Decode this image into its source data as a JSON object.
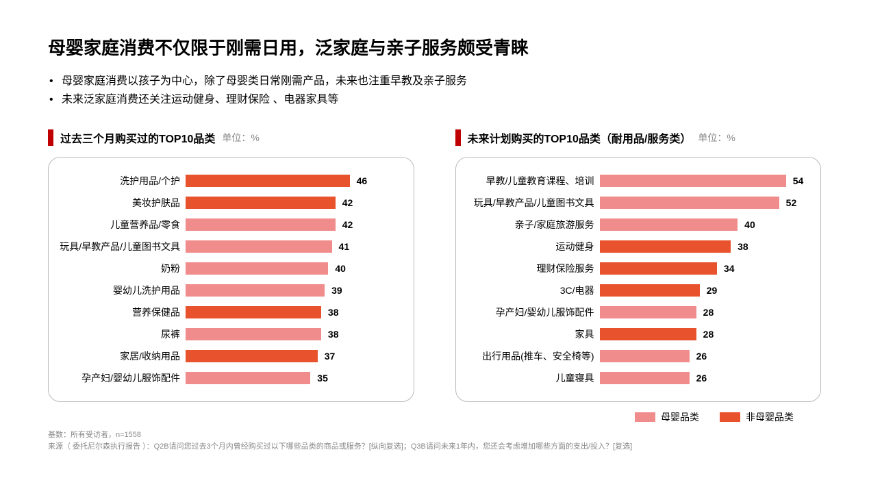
{
  "title": "母婴家庭消费不仅限于刚需日用，泛家庭与亲子服务颇受青睐",
  "bullets": [
    "母婴家庭消费以孩子为中心，除了母婴类日常刚需产品，未来也注重早教及亲子服务",
    "未来泛家庭消费还关注运动健身、理财保险 、电器家具等"
  ],
  "colors": {
    "maternal": "#f08c8c",
    "nonmaternal": "#e8522c",
    "accent": "#c00000",
    "border": "#bbbbbb",
    "text_muted": "#888888"
  },
  "legend": {
    "maternal_label": "母婴品类",
    "nonmaternal_label": "非母婴品类"
  },
  "chart_left": {
    "title": "过去三个月购买过的TOP10品类",
    "unit": "单位：%",
    "label_width": 190,
    "max_value": 60,
    "items": [
      {
        "label": "洗护用品/个护",
        "value": 46,
        "cat": "nonmaternal"
      },
      {
        "label": "美妆护肤品",
        "value": 42,
        "cat": "nonmaternal"
      },
      {
        "label": "儿童营养品/零食",
        "value": 42,
        "cat": "maternal"
      },
      {
        "label": "玩具/早教产品/儿童图书文具",
        "value": 41,
        "cat": "maternal"
      },
      {
        "label": "奶粉",
        "value": 40,
        "cat": "maternal"
      },
      {
        "label": "婴幼儿洗护用品",
        "value": 39,
        "cat": "maternal"
      },
      {
        "label": "营养保健品",
        "value": 38,
        "cat": "nonmaternal"
      },
      {
        "label": "尿裤",
        "value": 38,
        "cat": "maternal"
      },
      {
        "label": "家居/收纳用品",
        "value": 37,
        "cat": "nonmaternal"
      },
      {
        "label": "孕产妇/婴幼儿服饰配件",
        "value": 35,
        "cat": "maternal"
      }
    ]
  },
  "chart_right": {
    "title": "未来计划购买的TOP10品类（耐用品/服务类）",
    "unit": "单位：%",
    "label_width": 200,
    "max_value": 60,
    "items": [
      {
        "label": "早教/儿童教育课程、培训",
        "value": 54,
        "cat": "maternal"
      },
      {
        "label": "玩具/早教产品/儿童图书文具",
        "value": 52,
        "cat": "maternal"
      },
      {
        "label": "亲子/家庭旅游服务",
        "value": 40,
        "cat": "maternal"
      },
      {
        "label": "运动健身",
        "value": 38,
        "cat": "nonmaternal"
      },
      {
        "label": "理财保险服务",
        "value": 34,
        "cat": "nonmaternal"
      },
      {
        "label": "3C/电器",
        "value": 29,
        "cat": "nonmaternal"
      },
      {
        "label": "孕产妇/婴幼儿服饰配件",
        "value": 28,
        "cat": "maternal"
      },
      {
        "label": "家具",
        "value": 28,
        "cat": "nonmaternal"
      },
      {
        "label": "出行用品(推车、安全椅等)",
        "value": 26,
        "cat": "maternal"
      },
      {
        "label": "儿童寝具",
        "value": 26,
        "cat": "maternal"
      }
    ]
  },
  "footer": {
    "line1": "基数：所有受访者，n=1558",
    "line2": "来源（ 委托尼尔森执行报告 ）：Q2B请问您过去3个月内曾经购买过以下哪些品类的商品或服务？[纵向复选]；Q3B请问未来1年内，您还会考虑增加哪些方面的支出/投入？[复选]"
  }
}
